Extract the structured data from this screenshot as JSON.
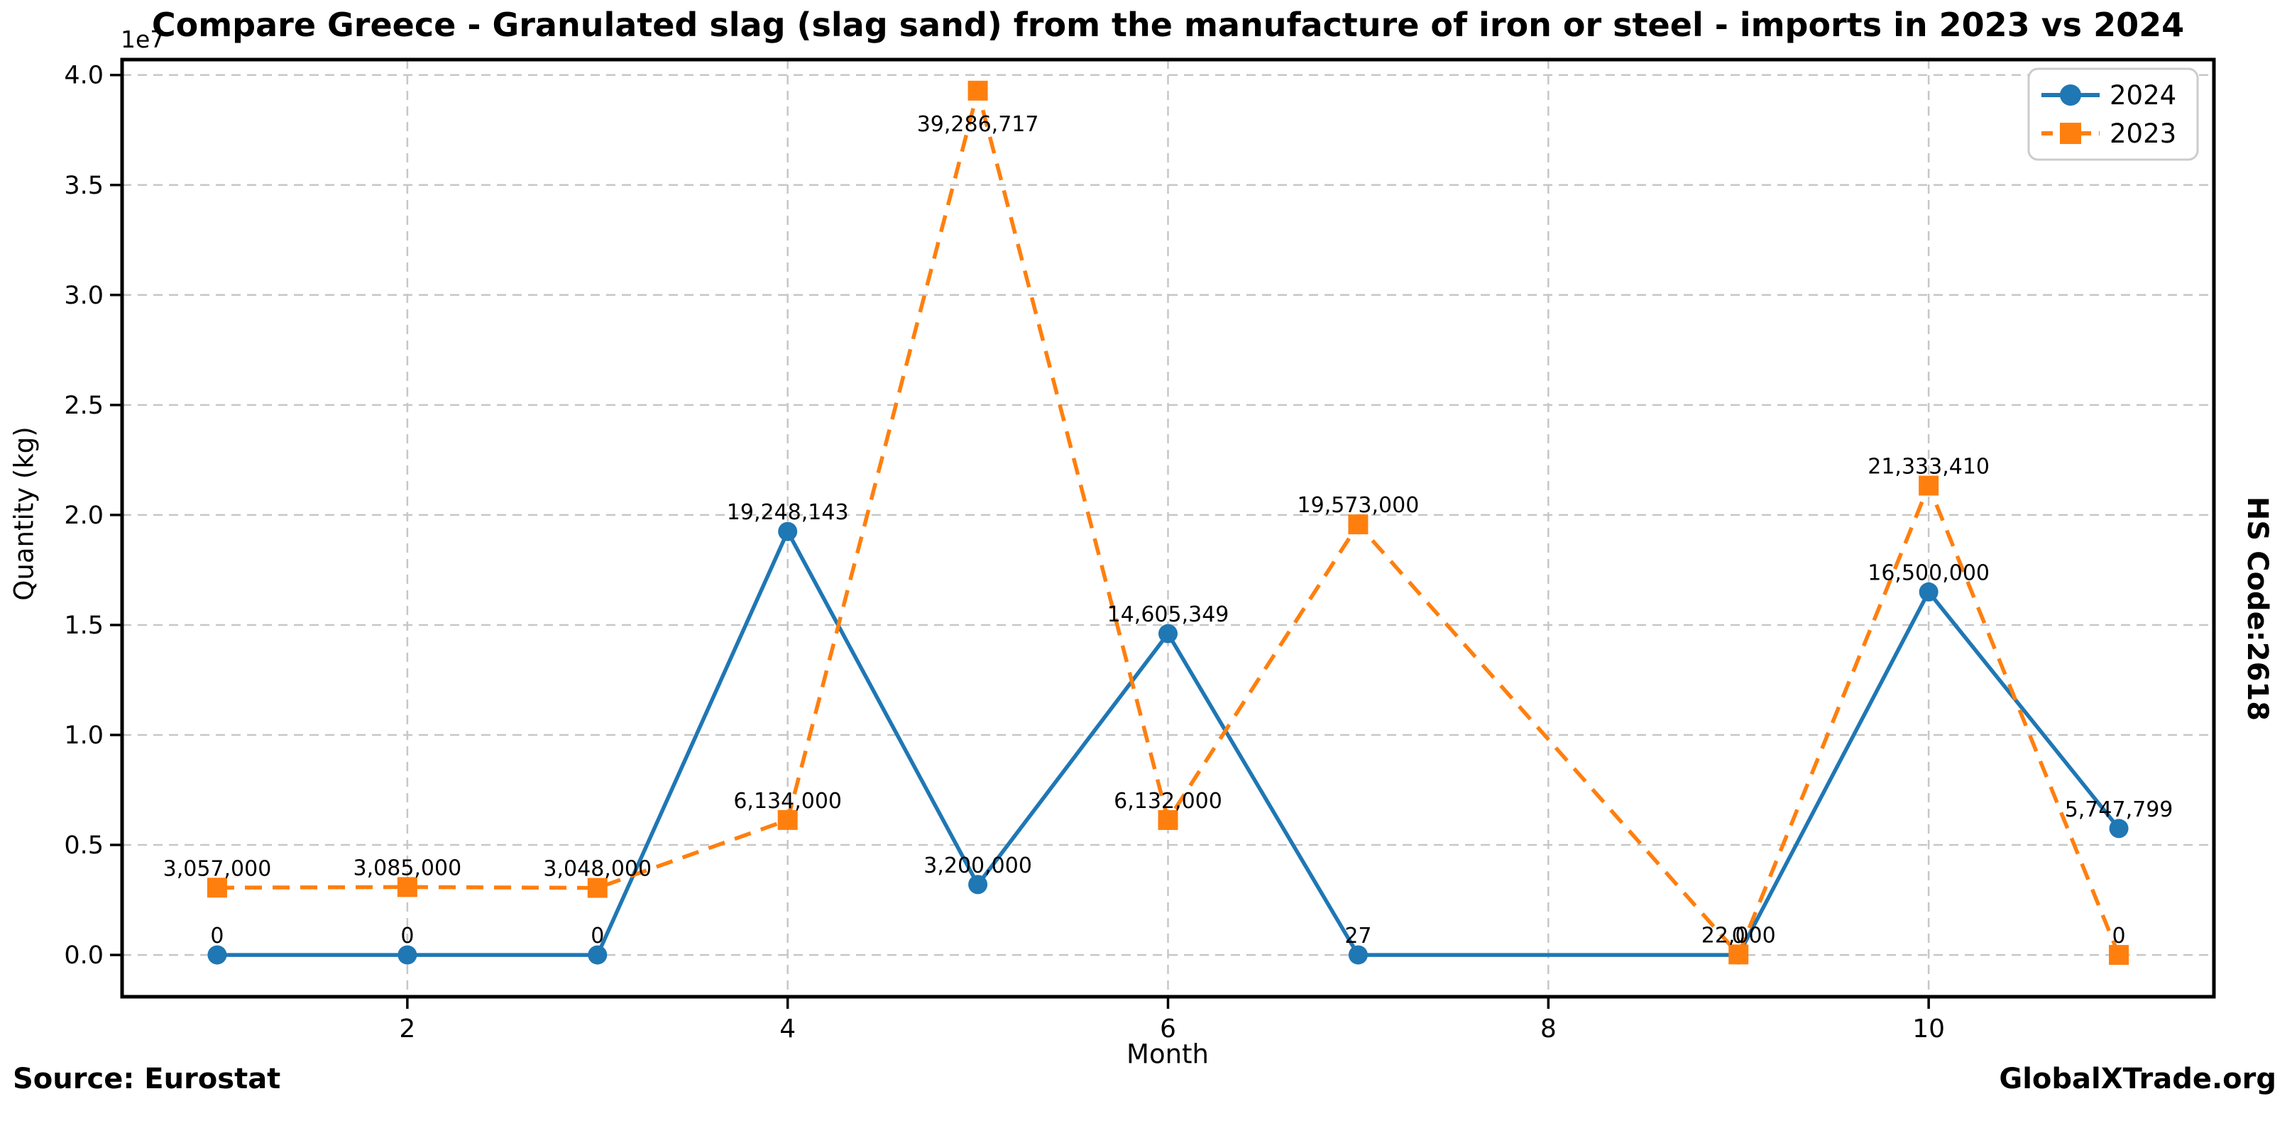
{
  "chart_data": {
    "type": "line",
    "title": "Compare Greece - Granulated slag (slag sand) from the manufacture of iron or steel - imports in 2023 vs 2024",
    "xlabel": "Month",
    "ylabel": "Quantity (kg)",
    "y_offset_text": "1e7",
    "xlim": [
      0.5,
      11.5
    ],
    "ylim": [
      -1900000,
      40700000
    ],
    "xticks": [
      2,
      4,
      6,
      8,
      10
    ],
    "yticks_labels": [
      "0.0",
      "0.5",
      "1.0",
      "1.5",
      "2.0",
      "2.5",
      "3.0",
      "3.5",
      "4.0"
    ],
    "yticks_values": [
      0,
      5000000,
      10000000,
      15000000,
      20000000,
      25000000,
      30000000,
      35000000,
      40000000
    ],
    "grid": true,
    "legend_position": "upper right",
    "series": [
      {
        "name": "2024",
        "color": "#1f77b4",
        "line_style": "solid",
        "marker": "circle",
        "x": [
          1,
          2,
          3,
          4,
          5,
          6,
          7,
          9,
          10,
          11
        ],
        "values": [
          0,
          0,
          0,
          19248143,
          3200000,
          14605349,
          27,
          0,
          16500000,
          5747799
        ],
        "labels": [
          "0",
          "0",
          "0",
          "19,248,143",
          "3,200,000",
          "14,605,349",
          "27",
          "0",
          "16,500,000",
          "5,747,799"
        ]
      },
      {
        "name": "2023",
        "color": "#ff7f0e",
        "line_style": "dashed",
        "marker": "square",
        "x": [
          1,
          2,
          3,
          4,
          5,
          6,
          7,
          9,
          10,
          11
        ],
        "values": [
          3057000,
          3085000,
          3048000,
          6134000,
          39286717,
          6132000,
          19573000,
          22000,
          21333410,
          0
        ],
        "labels": [
          "3,057,000",
          "3,085,000",
          "3,048,000",
          "6,134,000",
          "39,286,717",
          "6,132,000",
          "19,573,000",
          "22,000",
          "21,333,410",
          "0"
        ]
      }
    ]
  },
  "annotations": {
    "source": "Source: Eurostat",
    "brand": "GlobalXTrade.org",
    "hs_code": "HS Code:2618"
  },
  "colors": {
    "grid": "#c7c7c7",
    "spine": "#000000",
    "background": "#ffffff",
    "legend_border": "#cccccc",
    "series_2024": "#1f77b4",
    "series_2023": "#ff7f0e"
  }
}
